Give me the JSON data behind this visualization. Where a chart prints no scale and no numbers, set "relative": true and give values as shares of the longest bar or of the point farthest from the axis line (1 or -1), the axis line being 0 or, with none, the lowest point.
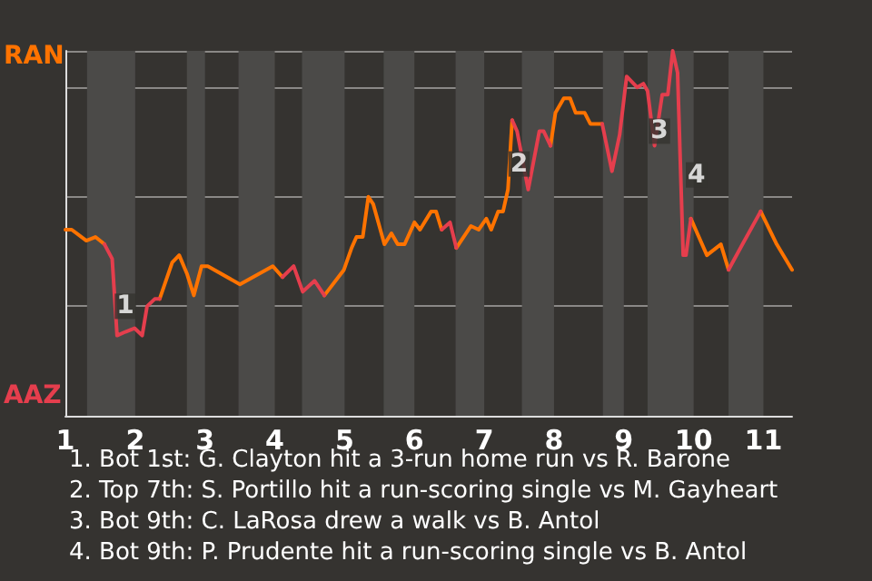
{
  "chart_data": {
    "type": "line",
    "relative": true,
    "x": [
      1,
      1.09,
      1.3,
      1.43,
      1.56,
      1.67,
      1.74,
      1.86,
      1.99,
      2.1,
      2.17,
      2.28,
      2.35,
      2.53,
      2.63,
      2.74,
      2.84,
      2.95,
      3.04,
      3.5,
      3.97,
      4.11,
      4.27,
      4.4,
      4.57,
      4.71,
      4.99,
      5.1,
      5.17,
      5.26,
      5.34,
      5.41,
      5.57,
      5.67,
      5.76,
      5.86,
      6,
      6.08,
      6.24,
      6.31,
      6.39,
      6.51,
      6.6,
      6.81,
      6.92,
      7.03,
      7.1,
      7.2,
      7.27,
      7.34,
      7.4,
      7.47,
      7.63,
      7.79,
      7.85,
      7.95,
      8.02,
      8.14,
      8.23,
      8.31,
      8.44,
      8.52,
      8.69,
      8.83,
      8.94,
      9.04,
      9.19,
      9.28,
      9.34,
      9.44,
      9.55,
      9.63,
      9.7,
      9.77,
      9.85,
      9.89,
      9.96,
      10.19,
      10.39,
      10.5,
      10.7,
      10.96,
      11.19,
      11.41
    ],
    "series": [
      {
        "name": "RAN",
        "color": "#ff7300",
        "values": [
          0.51,
          0.51,
          0.48,
          0.49,
          0.47,
          null,
          null,
          null,
          null,
          null,
          null,
          null,
          0.32,
          0.42,
          0.44,
          0.39,
          0.33,
          0.41,
          0.41,
          0.36,
          0.41,
          0.38,
          null,
          null,
          null,
          0.33,
          0.4,
          0.46,
          0.49,
          0.49,
          0.6,
          0.58,
          0.47,
          0.5,
          0.47,
          0.47,
          0.53,
          0.51,
          0.56,
          0.56,
          0.51,
          null,
          0.46,
          0.52,
          0.51,
          0.54,
          0.51,
          0.56,
          0.56,
          0.62,
          0.81,
          null,
          null,
          null,
          null,
          0.74,
          0.83,
          0.87,
          0.87,
          0.83,
          0.83,
          0.8,
          0.8,
          null,
          null,
          null,
          null,
          null,
          null,
          null,
          null,
          null,
          null,
          null,
          null,
          null,
          0.54,
          0.44,
          0.47,
          0.4,
          null,
          0.56,
          0.47,
          0.4
        ]
      },
      {
        "name": "AAZ",
        "color": "#e53e4d",
        "values": [
          null,
          null,
          null,
          null,
          0.47,
          0.43,
          0.22,
          0.23,
          0.24,
          0.22,
          0.3,
          0.32,
          0.32,
          null,
          null,
          null,
          null,
          null,
          null,
          null,
          null,
          0.38,
          0.41,
          0.34,
          0.37,
          0.33,
          null,
          null,
          null,
          null,
          null,
          null,
          null,
          null,
          null,
          null,
          null,
          null,
          null,
          null,
          0.51,
          0.53,
          0.46,
          null,
          null,
          null,
          null,
          null,
          null,
          null,
          0.81,
          0.78,
          0.62,
          0.78,
          0.78,
          0.74,
          null,
          null,
          null,
          null,
          null,
          null,
          0.8,
          0.67,
          0.77,
          0.93,
          0.9,
          0.91,
          0.89,
          0.74,
          0.88,
          0.88,
          1,
          0.94,
          0.44,
          0.44,
          0.54,
          null,
          null,
          0.4,
          0.47,
          0.56,
          null,
          null
        ]
      }
    ],
    "xlim": [
      1,
      11.41
    ],
    "xticks": [
      1,
      2,
      3,
      4,
      5,
      6,
      7,
      8,
      9,
      10,
      11
    ],
    "grid": "y",
    "bands": [
      {
        "axis": "x",
        "from": 1.31,
        "to": 2,
        "color": "#4b4a48"
      },
      {
        "axis": "x",
        "from": 2.74,
        "to": 3,
        "color": "#4b4a48"
      },
      {
        "axis": "x",
        "from": 3.48,
        "to": 4,
        "color": "#4b4a48"
      },
      {
        "axis": "x",
        "from": 4.39,
        "to": 5,
        "color": "#4b4a48"
      },
      {
        "axis": "x",
        "from": 5.56,
        "to": 6,
        "color": "#4b4a48"
      },
      {
        "axis": "x",
        "from": 6.59,
        "to": 7,
        "color": "#4b4a48"
      },
      {
        "axis": "x",
        "from": 7.54,
        "to": 8,
        "color": "#4b4a48"
      },
      {
        "axis": "x",
        "from": 8.7,
        "to": 9,
        "color": "#4b4a48"
      },
      {
        "axis": "x",
        "from": 9.34,
        "to": 10,
        "color": "#4b4a48"
      },
      {
        "axis": "x",
        "from": 10.5,
        "to": 11,
        "color": "#4b4a48"
      }
    ],
    "annotations": [
      {
        "text": "1",
        "x": 1.86,
        "y": 0.3
      },
      {
        "text": "2",
        "x": 7.5,
        "y": 0.69
      },
      {
        "text": "3",
        "x": 9.51,
        "y": 0.78
      },
      {
        "text": "4",
        "x": 10.04,
        "y": 0.66
      },
      "1. Bot 1st: G. Clayton hit a 3-run home run vs R. Barone",
      "2. Top 7th: S. Portillo hit a run-scoring single vs M. Gayheart",
      "3. Bot 9th: C. LaRosa drew a walk vs B. Antol",
      "4. Bot 9th: P. Prudente hit a run-scoring single vs B. Antol"
    ],
    "legend": "left"
  }
}
